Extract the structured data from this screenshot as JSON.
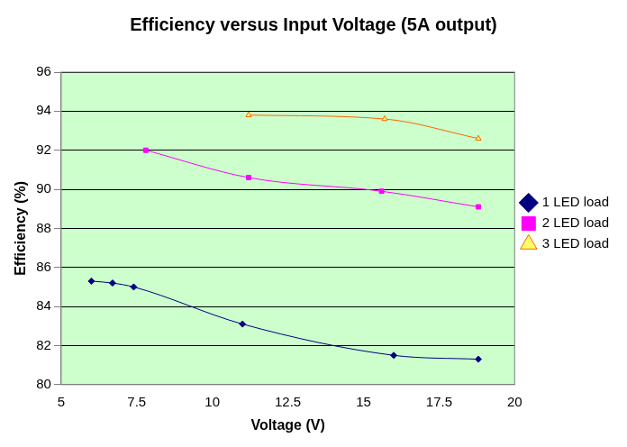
{
  "chart_data": {
    "type": "line",
    "title": "Efficiency versus Input Voltage (5A output)",
    "x_label": "Voltage (V)",
    "y_label": "Efficiency (%)",
    "xlim": [
      5,
      20
    ],
    "xticks": [
      5,
      7.5,
      10,
      12.5,
      15,
      17.5,
      20
    ],
    "ylim": [
      80,
      96
    ],
    "yticks": [
      80,
      82,
      84,
      86,
      88,
      90,
      92,
      94,
      96
    ],
    "grid": "y",
    "legend": "right",
    "series": [
      {
        "name": "1 LED load",
        "color": "#000080",
        "marker": "diamond",
        "line_style": "smooth",
        "x": [
          6.0,
          6.7,
          7.4,
          11.0,
          16.0,
          18.8
        ],
        "values": [
          85.3,
          85.2,
          85.0,
          83.1,
          81.5,
          81.3
        ]
      },
      {
        "name": "2 LED load",
        "color": "#ff00ff",
        "marker": "square",
        "line_style": "smooth",
        "x": [
          7.8,
          11.2,
          15.6,
          18.8
        ],
        "values": [
          92.0,
          90.6,
          89.9,
          89.1
        ]
      },
      {
        "name": "3 LED load",
        "color": "#ff6600",
        "marker": "triangle",
        "line_style": "smooth",
        "x": [
          11.2,
          15.7,
          18.8
        ],
        "values": [
          93.8,
          93.6,
          92.6
        ]
      }
    ]
  }
}
